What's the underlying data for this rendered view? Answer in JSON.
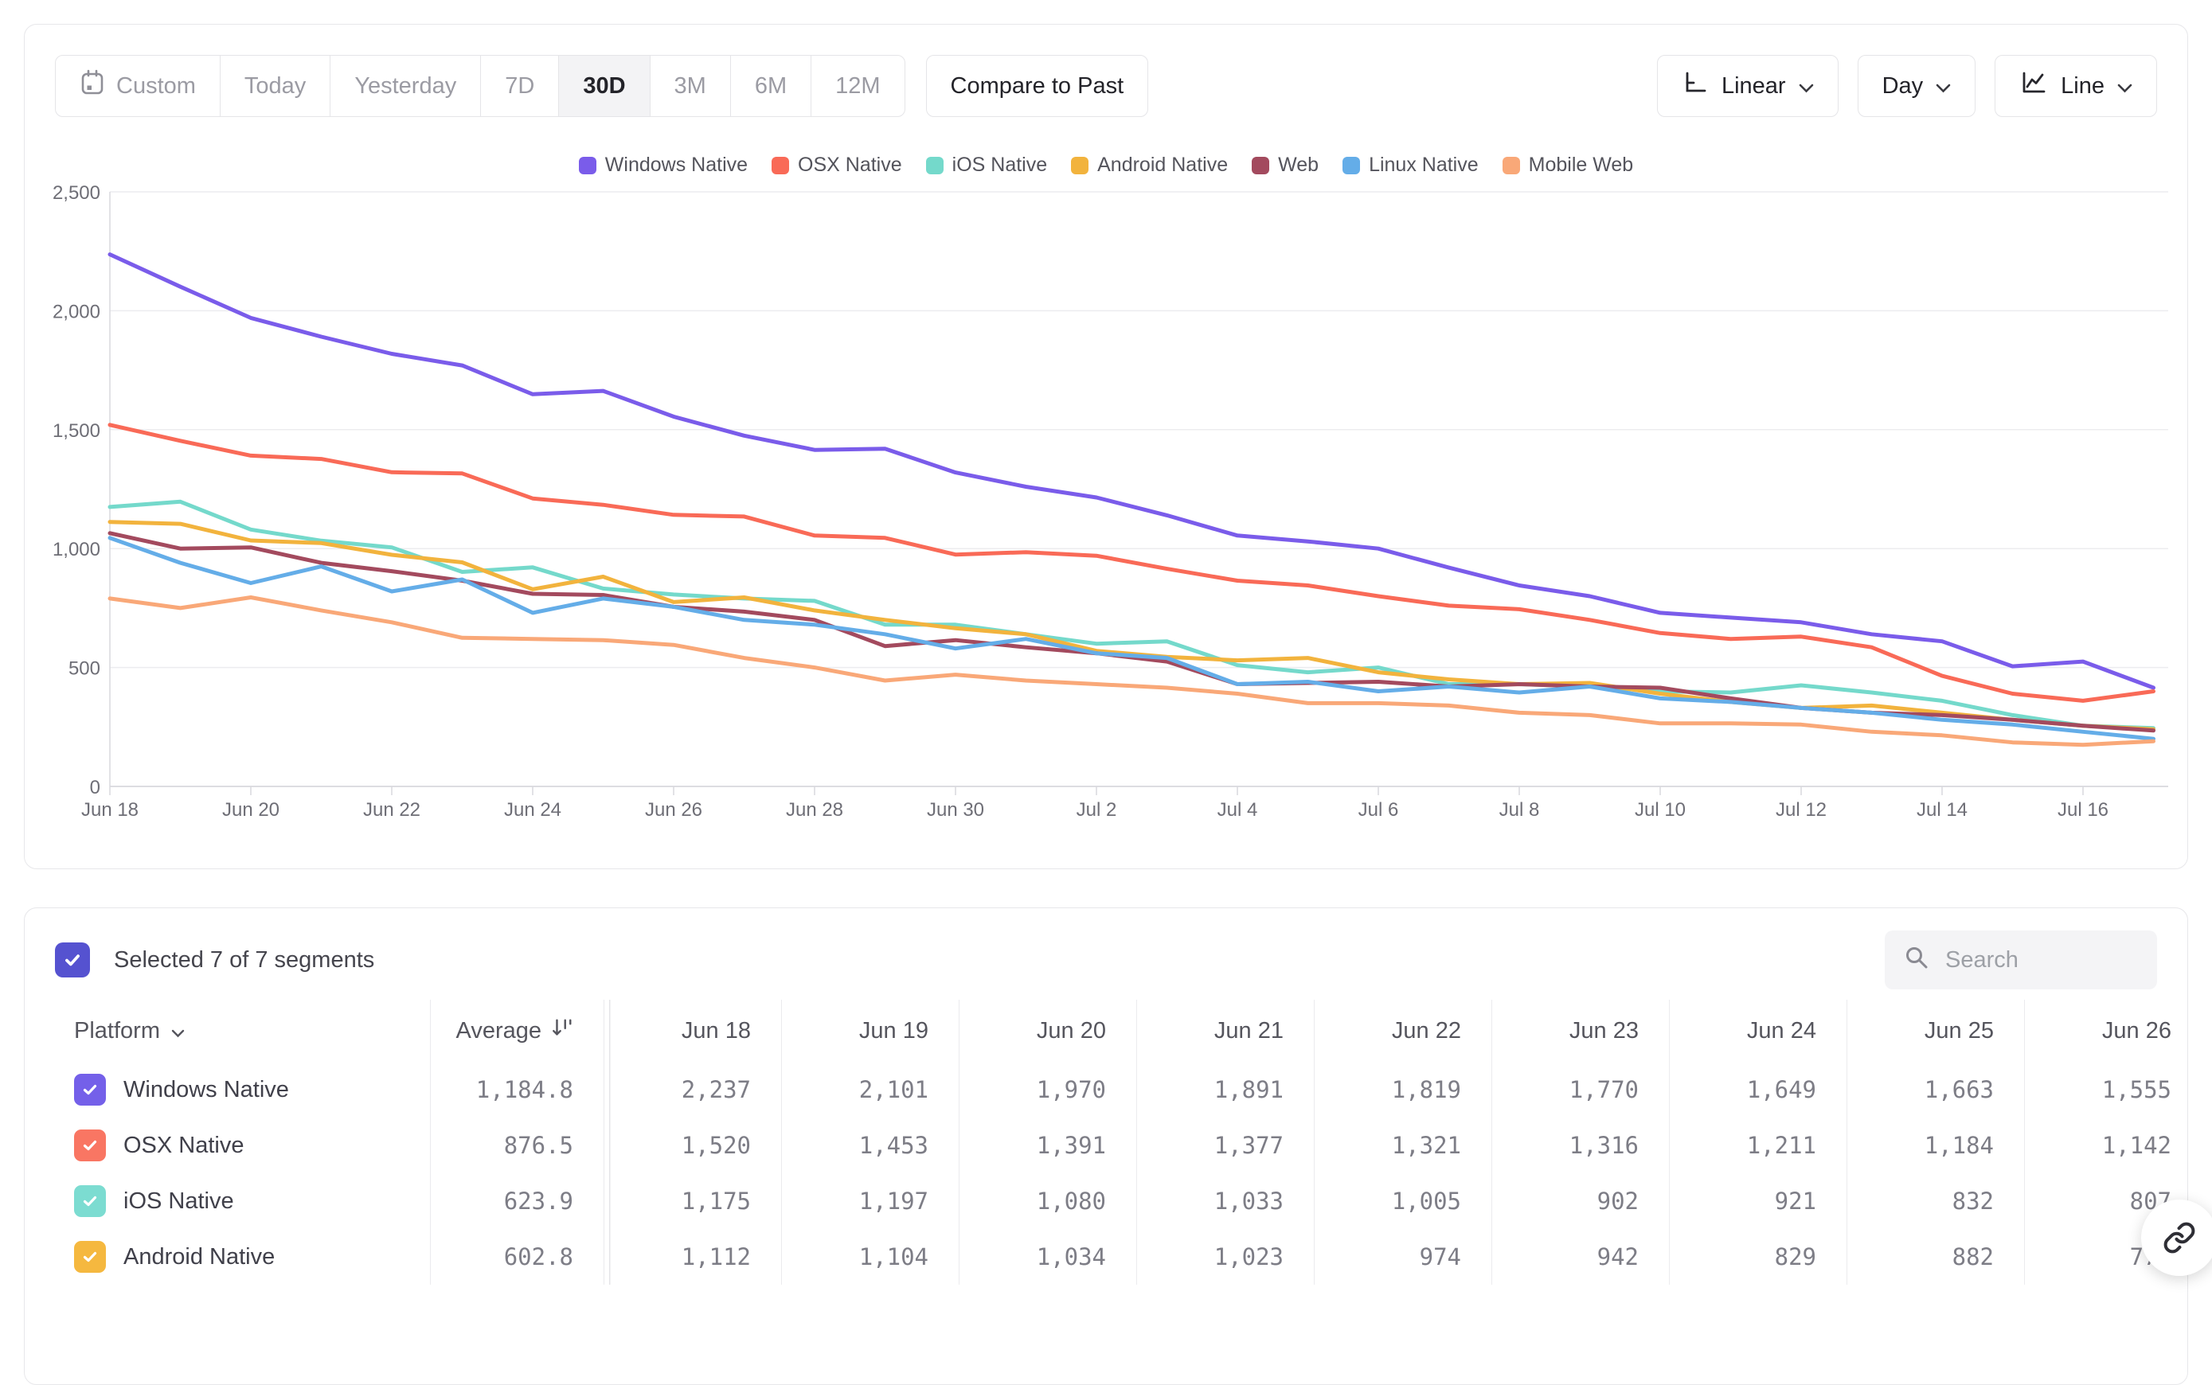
{
  "toolbar": {
    "date_ranges": [
      {
        "label": "Custom",
        "icon": "calendar-icon",
        "active": false
      },
      {
        "label": "Today",
        "active": false
      },
      {
        "label": "Yesterday",
        "active": false
      },
      {
        "label": "7D",
        "active": false
      },
      {
        "label": "30D",
        "active": true
      },
      {
        "label": "3M",
        "active": false
      },
      {
        "label": "6M",
        "active": false
      },
      {
        "label": "12M",
        "active": false
      }
    ],
    "compare_label": "Compare to Past",
    "scale_label": "Linear",
    "interval_label": "Day",
    "chart_type_label": "Line"
  },
  "chart_data": {
    "type": "line",
    "title": "",
    "grid": "horizontal",
    "legend_position": "top",
    "ylim": [
      0,
      2500
    ],
    "y_ticks": [
      [
        0,
        "0"
      ],
      [
        500,
        "500"
      ],
      [
        1000,
        "1,000"
      ],
      [
        1500,
        "1,500"
      ],
      [
        2000,
        "2,000"
      ],
      [
        2500,
        "2,500"
      ]
    ],
    "x_label_every": 2,
    "x": [
      "Jun 18",
      "Jun 19",
      "Jun 20",
      "Jun 21",
      "Jun 22",
      "Jun 23",
      "Jun 24",
      "Jun 25",
      "Jun 26",
      "Jun 27",
      "Jun 28",
      "Jun 29",
      "Jun 30",
      "Jul 1",
      "Jul 2",
      "Jul 3",
      "Jul 4",
      "Jul 5",
      "Jul 6",
      "Jul 7",
      "Jul 8",
      "Jul 9",
      "Jul 10",
      "Jul 11",
      "Jul 12",
      "Jul 13",
      "Jul 14",
      "Jul 15",
      "Jul 16",
      "Jul 17"
    ],
    "series": [
      {
        "name": "Windows Native",
        "color": "#7a5cea",
        "values": [
          2237,
          2101,
          1970,
          1891,
          1819,
          1770,
          1649,
          1663,
          1555,
          1475,
          1415,
          1420,
          1320,
          1260,
          1215,
          1140,
          1055,
          1030,
          1000,
          920,
          845,
          800,
          730,
          710,
          690,
          640,
          610,
          505,
          525,
          415
        ]
      },
      {
        "name": "OSX Native",
        "color": "#f96a57",
        "values": [
          1520,
          1453,
          1391,
          1377,
          1321,
          1316,
          1211,
          1184,
          1142,
          1135,
          1055,
          1045,
          975,
          985,
          970,
          915,
          865,
          845,
          800,
          760,
          745,
          700,
          645,
          620,
          630,
          585,
          465,
          390,
          360,
          400
        ]
      },
      {
        "name": "iOS Native",
        "color": "#74d9cb",
        "values": [
          1175,
          1197,
          1080,
          1033,
          1005,
          902,
          921,
          832,
          807,
          790,
          780,
          680,
          680,
          640,
          600,
          610,
          510,
          480,
          500,
          430,
          430,
          420,
          400,
          395,
          425,
          395,
          360,
          300,
          255,
          245
        ]
      },
      {
        "name": "Android Native",
        "color": "#f2b33d",
        "values": [
          1112,
          1104,
          1034,
          1023,
          974,
          942,
          829,
          882,
          775,
          795,
          740,
          700,
          665,
          640,
          570,
          545,
          530,
          540,
          480,
          450,
          430,
          435,
          390,
          355,
          330,
          340,
          310,
          280,
          255,
          240
        ]
      },
      {
        "name": "Web",
        "color": "#a34a5e",
        "values": [
          1065,
          1000,
          1005,
          940,
          905,
          865,
          810,
          805,
          755,
          735,
          700,
          590,
          615,
          585,
          560,
          525,
          430,
          435,
          440,
          420,
          430,
          420,
          415,
          370,
          330,
          310,
          300,
          280,
          255,
          235
        ]
      },
      {
        "name": "Linux Native",
        "color": "#64ade8",
        "values": [
          1045,
          940,
          855,
          925,
          820,
          870,
          730,
          790,
          755,
          700,
          680,
          640,
          580,
          620,
          560,
          540,
          430,
          440,
          400,
          420,
          395,
          420,
          370,
          355,
          330,
          310,
          280,
          260,
          230,
          200
        ]
      },
      {
        "name": "Mobile Web",
        "color": "#f9a878",
        "values": [
          790,
          750,
          795,
          740,
          690,
          625,
          620,
          615,
          595,
          540,
          500,
          445,
          470,
          445,
          430,
          415,
          390,
          350,
          350,
          340,
          310,
          300,
          265,
          265,
          260,
          230,
          215,
          185,
          175,
          190
        ]
      }
    ]
  },
  "segments_bar": {
    "selected_text": "Selected 7 of 7 segments",
    "checkbox_color": "#5552d0",
    "search_placeholder": "Search"
  },
  "table": {
    "columns": [
      "Platform",
      "Average",
      "Jun 18",
      "Jun 19",
      "Jun 20",
      "Jun 21",
      "Jun 22",
      "Jun 23",
      "Jun 24",
      "Jun 25",
      "Jun 26"
    ],
    "rows": [
      {
        "name": "Windows Native",
        "checkbox_color": "#7460e9",
        "average": "1,184.8",
        "values": [
          "2,237",
          "2,101",
          "1,970",
          "1,891",
          "1,819",
          "1,770",
          "1,649",
          "1,663",
          "1,555"
        ]
      },
      {
        "name": "OSX Native",
        "checkbox_color": "#f97663",
        "average": "876.5",
        "values": [
          "1,520",
          "1,453",
          "1,391",
          "1,377",
          "1,321",
          "1,316",
          "1,211",
          "1,184",
          "1,142"
        ]
      },
      {
        "name": "iOS Native",
        "checkbox_color": "#7cdcd1",
        "average": "623.9",
        "values": [
          "1,175",
          "1,197",
          "1,080",
          "1,033",
          "1,005",
          "902",
          "921",
          "832",
          "807"
        ]
      },
      {
        "name": "Android Native",
        "checkbox_color": "#f5b83f",
        "average": "602.8",
        "values": [
          "1,112",
          "1,104",
          "1,034",
          "1,023",
          "974",
          "942",
          "829",
          "882",
          "775"
        ]
      }
    ]
  }
}
